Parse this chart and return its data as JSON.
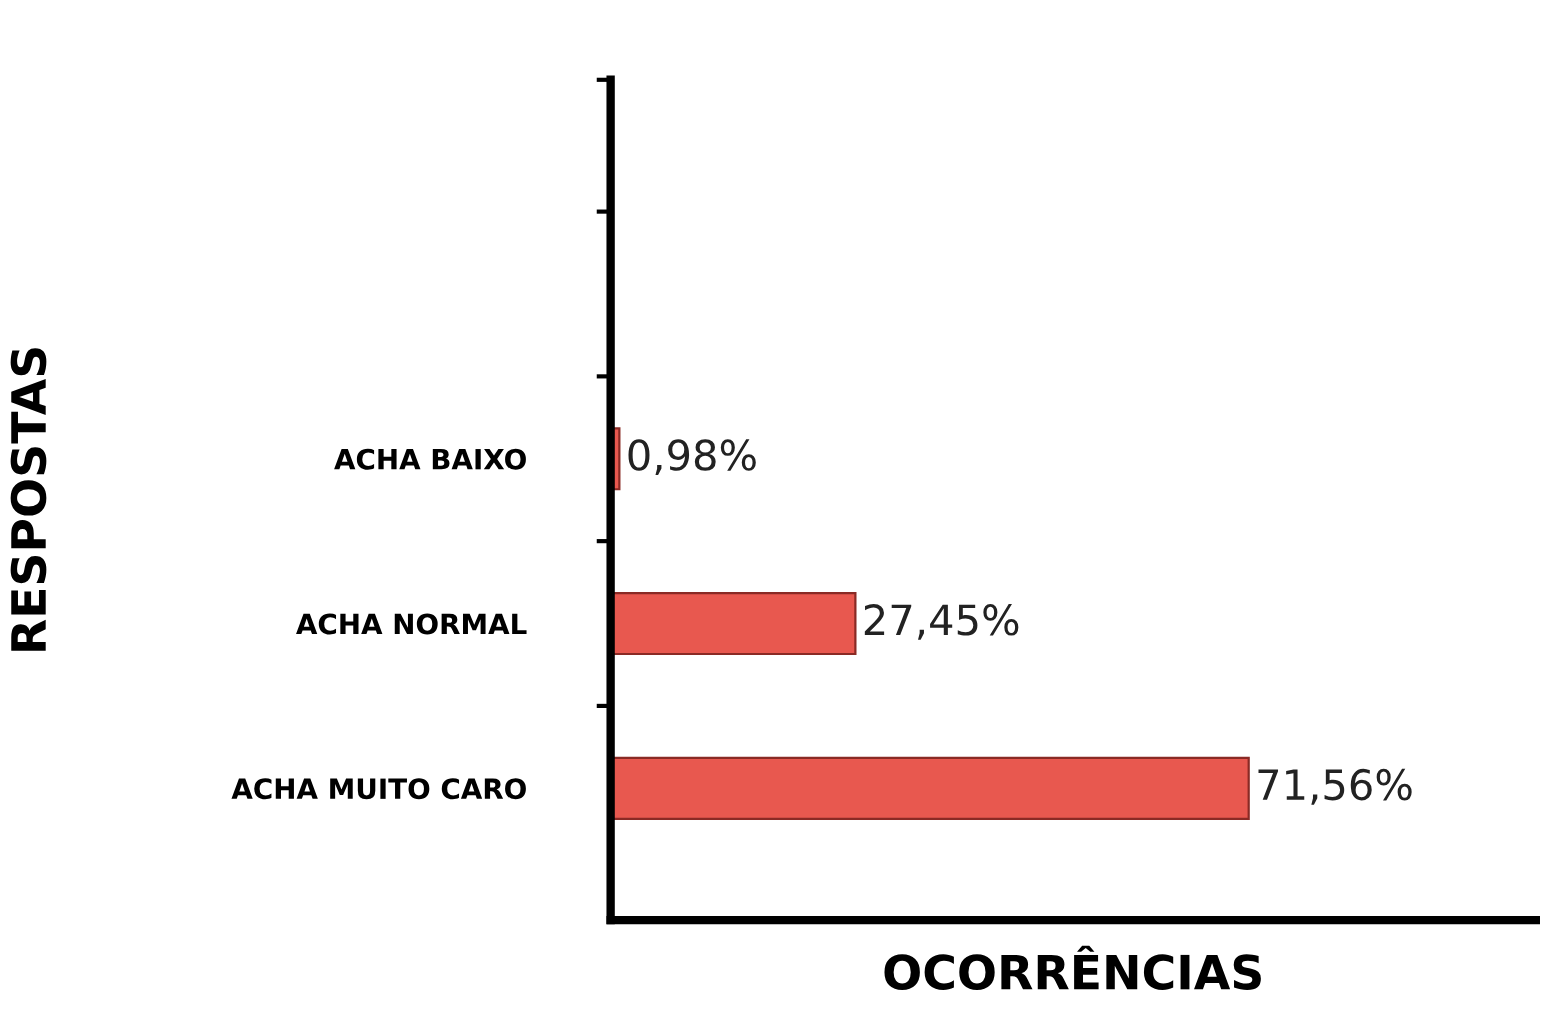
{
  "chart_data": {
    "type": "bar",
    "orientation": "horizontal",
    "xlabel": "OCORRÊNCIAS",
    "ylabel": "RESPOSTAS",
    "categories": [
      null,
      null,
      "ACHA BAIXO",
      "ACHA NORMAL",
      "ACHA MUITO CARO"
    ],
    "values": [
      null,
      null,
      0.98,
      27.45,
      71.56
    ],
    "value_labels": [
      null,
      null,
      "0,98%",
      "27,45%",
      "71,56%"
    ],
    "color": "#e8584f",
    "grid": false,
    "legend": false
  }
}
